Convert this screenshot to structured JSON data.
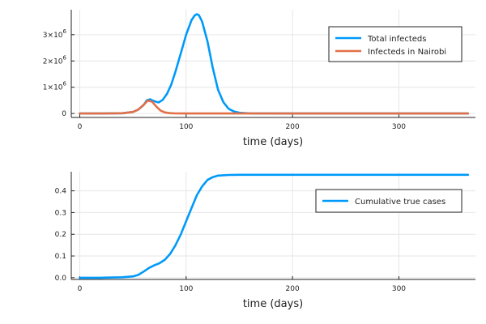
{
  "chart_data": [
    {
      "type": "line",
      "xlabel": "time (days)",
      "xlim": [
        -8,
        372
      ],
      "ylim": [
        -150000,
        3950000
      ],
      "grid": true,
      "legend_position": "top-right",
      "x_ticks": [
        0,
        100,
        200,
        300
      ],
      "y_ticks": [
        {
          "value": 0,
          "base": "0",
          "exp": ""
        },
        {
          "value": 1000000,
          "base": "1×10",
          "exp": "6"
        },
        {
          "value": 2000000,
          "base": "2×10",
          "exp": "6"
        },
        {
          "value": 3000000,
          "base": "3×10",
          "exp": "6"
        }
      ],
      "series": [
        {
          "name": "Total infecteds",
          "color": "#009AFA",
          "x": [
            0,
            20,
            40,
            50,
            55,
            60,
            63,
            66,
            70,
            74,
            78,
            82,
            86,
            90,
            95,
            100,
            105,
            108,
            110,
            112,
            115,
            120,
            125,
            130,
            135,
            140,
            145,
            150,
            160,
            180,
            200,
            250,
            300,
            365
          ],
          "y": [
            0,
            0,
            10000,
            60000,
            150000,
            320000,
            500000,
            540000,
            470000,
            420000,
            520000,
            750000,
            1100000,
            1600000,
            2300000,
            3000000,
            3550000,
            3730000,
            3780000,
            3740000,
            3500000,
            2750000,
            1750000,
            900000,
            430000,
            180000,
            75000,
            30000,
            5000,
            0,
            0,
            0,
            0,
            0
          ]
        },
        {
          "name": "Infecteds in Nairobi",
          "color": "#E26F46",
          "x": [
            0,
            20,
            40,
            50,
            55,
            60,
            64,
            68,
            72,
            76,
            80,
            85,
            90,
            100,
            120,
            150,
            200,
            300,
            365
          ],
          "y": [
            0,
            0,
            10000,
            60000,
            150000,
            330000,
            490000,
            450000,
            260000,
            110000,
            40000,
            12000,
            4000,
            0,
            0,
            0,
            0,
            0,
            0
          ]
        }
      ]
    },
    {
      "type": "line",
      "xlabel": "time (days)",
      "xlim": [
        -8,
        372
      ],
      "ylim": [
        -0.008,
        0.488
      ],
      "grid": true,
      "legend_position": "top-right",
      "x_ticks": [
        0,
        100,
        200,
        300
      ],
      "y_ticks": [
        {
          "value": 0,
          "base": "0.0",
          "exp": ""
        },
        {
          "value": 0.1,
          "base": "0.1",
          "exp": ""
        },
        {
          "value": 0.2,
          "base": "0.2",
          "exp": ""
        },
        {
          "value": 0.3,
          "base": "0.3",
          "exp": ""
        },
        {
          "value": 0.4,
          "base": "0.4",
          "exp": ""
        }
      ],
      "series": [
        {
          "name": "Cumulative true cases",
          "color": "#009AFA",
          "x": [
            0,
            20,
            40,
            50,
            55,
            60,
            65,
            70,
            75,
            80,
            85,
            90,
            95,
            100,
            105,
            110,
            115,
            120,
            125,
            130,
            140,
            150,
            200,
            300,
            365
          ],
          "y": [
            0,
            0,
            0.002,
            0.006,
            0.013,
            0.028,
            0.045,
            0.057,
            0.067,
            0.083,
            0.11,
            0.15,
            0.2,
            0.26,
            0.32,
            0.38,
            0.42,
            0.45,
            0.463,
            0.47,
            0.473,
            0.474,
            0.474,
            0.474,
            0.474
          ]
        }
      ]
    }
  ]
}
